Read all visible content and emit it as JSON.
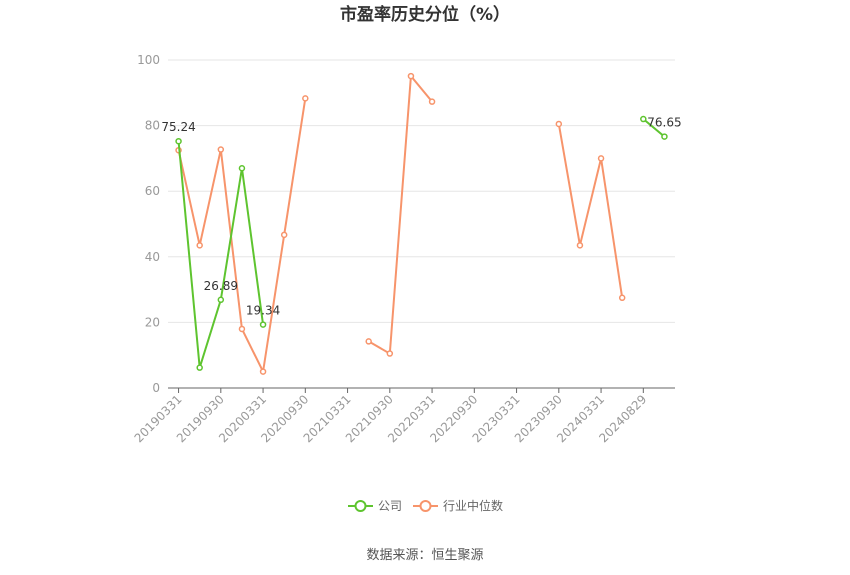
{
  "chart_data": {
    "type": "line",
    "title": "市盈率历史分位（%）",
    "source": "数据来源：恒生聚源",
    "ylim": [
      0,
      100
    ],
    "yticks": [
      0,
      20,
      40,
      60,
      80,
      100
    ],
    "x_tick_labels": [
      "20190331",
      "20190930",
      "20200331",
      "20200930",
      "20210331",
      "20210930",
      "20220331",
      "20220930",
      "20230331",
      "20230930",
      "20240331",
      "20240829"
    ],
    "grid": true,
    "legend_position": "bottom",
    "colors": {
      "company": "#5ec42f",
      "industry": "#f7946b"
    },
    "series": [
      {
        "name": "公司",
        "values": [
          75.24,
          6.2,
          26.89,
          67.0,
          19.34,
          null,
          null,
          null,
          null,
          null,
          null,
          null,
          null,
          null,
          null,
          null,
          null,
          null,
          null,
          null,
          null,
          null,
          82.0,
          76.65
        ],
        "labels": [
          "75.24",
          null,
          "26.89",
          null,
          "19.34",
          null,
          null,
          null,
          null,
          null,
          null,
          null,
          null,
          null,
          null,
          null,
          null,
          null,
          null,
          null,
          null,
          null,
          null,
          "76.65"
        ]
      },
      {
        "name": "行业中位数",
        "values": [
          72.5,
          43.5,
          72.7,
          18.0,
          5.0,
          46.7,
          88.3,
          null,
          null,
          14.2,
          10.5,
          95.1,
          87.3,
          null,
          null,
          null,
          null,
          null,
          80.5,
          43.5,
          70.0,
          27.5,
          null,
          null
        ]
      }
    ]
  }
}
